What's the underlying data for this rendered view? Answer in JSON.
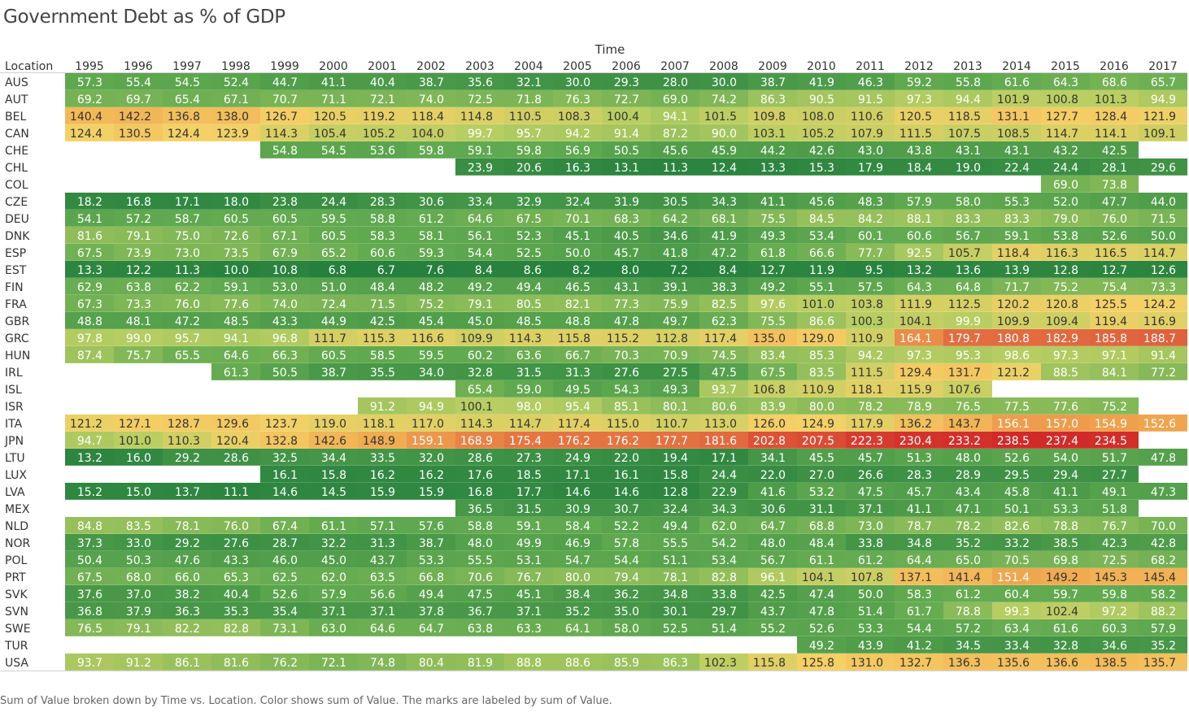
{
  "chart_data": {
    "type": "heatmap",
    "title": "Government Debt as % of GDP",
    "x_header": "Time",
    "y_header": "Location",
    "x": [
      "1995",
      "1996",
      "1997",
      "1998",
      "1999",
      "2000",
      "2001",
      "2002",
      "2003",
      "2004",
      "2005",
      "2006",
      "2007",
      "2008",
      "2009",
      "2010",
      "2011",
      "2012",
      "2013",
      "2014",
      "2015",
      "2016",
      "2017"
    ],
    "rows": [
      {
        "label": "AUS",
        "values": [
          57.3,
          55.4,
          54.5,
          52.4,
          44.7,
          41.1,
          40.4,
          38.7,
          35.6,
          32.1,
          30.0,
          29.3,
          28.0,
          30.0,
          38.7,
          41.9,
          46.3,
          59.2,
          55.8,
          61.6,
          64.3,
          68.6,
          65.7
        ]
      },
      {
        "label": "AUT",
        "values": [
          69.2,
          69.7,
          65.4,
          67.1,
          70.7,
          71.1,
          72.1,
          74.0,
          72.5,
          71.8,
          76.3,
          72.7,
          69.0,
          74.2,
          86.3,
          90.5,
          91.5,
          97.3,
          94.4,
          101.9,
          100.8,
          101.3,
          94.9
        ]
      },
      {
        "label": "BEL",
        "values": [
          140.4,
          142.2,
          136.8,
          138.0,
          126.7,
          120.5,
          119.2,
          118.4,
          114.8,
          110.5,
          108.3,
          100.4,
          94.1,
          101.5,
          109.8,
          108.0,
          110.6,
          120.5,
          118.5,
          131.1,
          127.7,
          128.4,
          121.9
        ]
      },
      {
        "label": "CAN",
        "values": [
          124.4,
          130.5,
          124.4,
          123.9,
          114.3,
          105.4,
          105.2,
          104.0,
          99.7,
          95.7,
          94.2,
          91.4,
          87.2,
          90.0,
          103.1,
          105.2,
          107.9,
          111.5,
          107.5,
          108.5,
          114.7,
          114.1,
          109.1
        ]
      },
      {
        "label": "CHE",
        "values": [
          null,
          null,
          null,
          null,
          54.8,
          54.5,
          53.6,
          59.8,
          59.1,
          59.8,
          56.9,
          50.5,
          45.6,
          45.9,
          44.2,
          42.6,
          43.0,
          43.8,
          43.1,
          43.1,
          43.2,
          42.5,
          null
        ]
      },
      {
        "label": "CHL",
        "values": [
          null,
          null,
          null,
          null,
          null,
          null,
          null,
          null,
          23.9,
          20.6,
          16.3,
          13.1,
          11.3,
          12.4,
          13.3,
          15.3,
          17.9,
          18.4,
          19.0,
          22.4,
          24.4,
          28.1,
          29.6
        ]
      },
      {
        "label": "COL",
        "values": [
          null,
          null,
          null,
          null,
          null,
          null,
          null,
          null,
          null,
          null,
          null,
          null,
          null,
          null,
          null,
          null,
          null,
          null,
          null,
          null,
          69.0,
          73.8,
          null
        ]
      },
      {
        "label": "CZE",
        "values": [
          18.2,
          16.8,
          17.1,
          18.0,
          23.8,
          24.4,
          28.3,
          30.6,
          33.4,
          32.9,
          32.4,
          31.9,
          30.5,
          34.3,
          41.1,
          45.6,
          48.3,
          57.9,
          58.0,
          55.3,
          52.0,
          47.7,
          44.0
        ]
      },
      {
        "label": "DEU",
        "values": [
          54.1,
          57.2,
          58.7,
          60.5,
          60.5,
          59.5,
          58.8,
          61.2,
          64.6,
          67.5,
          70.1,
          68.3,
          64.2,
          68.1,
          75.5,
          84.5,
          84.2,
          88.1,
          83.3,
          83.3,
          79.0,
          76.0,
          71.5
        ]
      },
      {
        "label": "DNK",
        "values": [
          81.6,
          79.1,
          75.0,
          72.6,
          67.1,
          60.5,
          58.3,
          58.1,
          56.1,
          52.3,
          45.1,
          40.5,
          34.6,
          41.9,
          49.3,
          53.4,
          60.1,
          60.6,
          56.7,
          59.1,
          53.8,
          52.6,
          50.0
        ]
      },
      {
        "label": "ESP",
        "values": [
          67.5,
          73.9,
          73.0,
          73.5,
          67.9,
          65.2,
          60.6,
          59.3,
          54.4,
          52.5,
          50.0,
          45.7,
          41.8,
          47.2,
          61.8,
          66.6,
          77.7,
          92.5,
          105.7,
          118.4,
          116.3,
          116.5,
          114.7
        ]
      },
      {
        "label": "EST",
        "values": [
          13.3,
          12.2,
          11.3,
          10.0,
          10.8,
          6.8,
          6.7,
          7.6,
          8.4,
          8.6,
          8.2,
          8.0,
          7.2,
          8.4,
          12.7,
          11.9,
          9.5,
          13.2,
          13.6,
          13.9,
          12.8,
          12.7,
          12.6
        ]
      },
      {
        "label": "FIN",
        "values": [
          62.9,
          63.8,
          62.2,
          59.1,
          53.0,
          51.0,
          48.4,
          48.2,
          49.2,
          49.4,
          46.5,
          43.1,
          39.1,
          38.3,
          49.2,
          55.1,
          57.5,
          64.3,
          64.8,
          71.7,
          75.2,
          75.4,
          73.3
        ]
      },
      {
        "label": "FRA",
        "values": [
          67.3,
          73.3,
          76.0,
          77.6,
          74.0,
          72.4,
          71.5,
          75.2,
          79.1,
          80.5,
          82.1,
          77.3,
          75.9,
          82.5,
          97.6,
          101.0,
          103.8,
          111.9,
          112.5,
          120.2,
          120.8,
          125.5,
          124.2
        ]
      },
      {
        "label": "GBR",
        "values": [
          48.8,
          48.1,
          47.2,
          48.5,
          43.3,
          44.9,
          42.5,
          45.4,
          45.0,
          48.5,
          48.8,
          47.8,
          49.7,
          62.3,
          75.5,
          86.6,
          100.3,
          104.1,
          99.9,
          109.9,
          109.4,
          119.4,
          116.9
        ]
      },
      {
        "label": "GRC",
        "values": [
          97.8,
          99.0,
          95.7,
          94.1,
          96.8,
          111.7,
          115.3,
          116.6,
          109.9,
          114.3,
          115.8,
          115.2,
          112.8,
          117.4,
          135.0,
          129.0,
          110.9,
          164.1,
          179.7,
          180.8,
          182.9,
          185.8,
          188.7
        ]
      },
      {
        "label": "HUN",
        "values": [
          87.4,
          75.7,
          65.5,
          64.6,
          66.3,
          60.5,
          58.5,
          59.5,
          60.2,
          63.6,
          66.7,
          70.3,
          70.9,
          74.5,
          83.4,
          85.3,
          94.2,
          97.3,
          95.3,
          98.6,
          97.3,
          97.1,
          91.4
        ]
      },
      {
        "label": "IRL",
        "values": [
          null,
          null,
          null,
          61.3,
          50.5,
          38.7,
          35.5,
          34.0,
          32.8,
          31.5,
          31.3,
          27.6,
          27.5,
          47.5,
          67.5,
          83.5,
          111.5,
          129.4,
          131.7,
          121.2,
          88.5,
          84.1,
          77.2
        ]
      },
      {
        "label": "ISL",
        "values": [
          null,
          null,
          null,
          null,
          null,
          null,
          null,
          null,
          65.4,
          59.0,
          49.5,
          54.3,
          49.3,
          93.7,
          106.8,
          110.9,
          118.1,
          115.9,
          107.6,
          null,
          null,
          null,
          null
        ]
      },
      {
        "label": "ISR",
        "values": [
          null,
          null,
          null,
          null,
          null,
          null,
          91.2,
          94.9,
          100.1,
          98.0,
          95.4,
          85.1,
          80.1,
          80.6,
          83.9,
          80.0,
          78.2,
          78.9,
          76.5,
          77.5,
          77.6,
          75.2,
          null
        ]
      },
      {
        "label": "ITA",
        "values": [
          121.2,
          127.1,
          128.7,
          129.6,
          123.7,
          119.0,
          118.1,
          117.0,
          114.3,
          114.7,
          117.4,
          115.0,
          110.7,
          113.0,
          126.0,
          124.9,
          117.9,
          136.2,
          143.7,
          156.1,
          157.0,
          154.9,
          152.6
        ]
      },
      {
        "label": "JPN",
        "values": [
          94.7,
          101.0,
          110.3,
          120.4,
          132.8,
          142.6,
          148.9,
          159.1,
          168.9,
          175.4,
          176.2,
          176.2,
          177.7,
          181.6,
          202.8,
          207.5,
          222.3,
          230.4,
          233.2,
          238.5,
          237.4,
          234.5,
          null
        ]
      },
      {
        "label": "LTU",
        "values": [
          13.2,
          16.0,
          29.2,
          28.6,
          32.5,
          34.4,
          33.5,
          32.0,
          28.6,
          27.3,
          24.9,
          22.0,
          19.4,
          17.1,
          34.1,
          45.5,
          45.7,
          51.3,
          48.0,
          52.6,
          54.0,
          51.7,
          47.8
        ]
      },
      {
        "label": "LUX",
        "values": [
          null,
          null,
          null,
          null,
          16.1,
          15.8,
          16.2,
          16.2,
          17.6,
          18.5,
          17.1,
          16.1,
          15.8,
          24.4,
          22.0,
          27.0,
          26.6,
          28.3,
          28.9,
          29.5,
          29.4,
          27.7,
          null
        ]
      },
      {
        "label": "LVA",
        "values": [
          15.2,
          15.0,
          13.7,
          11.1,
          14.6,
          14.5,
          15.9,
          15.9,
          16.8,
          17.7,
          14.6,
          14.6,
          12.8,
          22.9,
          41.6,
          53.2,
          47.5,
          45.7,
          43.4,
          45.8,
          41.1,
          49.1,
          47.3
        ]
      },
      {
        "label": "MEX",
        "values": [
          null,
          null,
          null,
          null,
          null,
          null,
          null,
          null,
          36.5,
          31.5,
          30.9,
          30.7,
          32.4,
          34.3,
          30.6,
          31.1,
          37.1,
          41.1,
          47.1,
          50.1,
          53.3,
          51.8,
          null
        ]
      },
      {
        "label": "NLD",
        "values": [
          84.8,
          83.5,
          78.1,
          76.0,
          67.4,
          61.1,
          57.1,
          57.6,
          58.8,
          59.1,
          58.4,
          52.2,
          49.4,
          62.0,
          64.7,
          68.8,
          73.0,
          78.7,
          78.2,
          82.6,
          78.8,
          76.7,
          70.0
        ]
      },
      {
        "label": "NOR",
        "values": [
          37.3,
          33.0,
          29.2,
          27.6,
          28.7,
          32.2,
          31.3,
          38.7,
          48.0,
          49.9,
          46.9,
          57.8,
          55.5,
          54.2,
          48.0,
          48.4,
          33.8,
          34.8,
          35.2,
          33.2,
          38.5,
          42.3,
          42.8
        ]
      },
      {
        "label": "POL",
        "values": [
          50.4,
          50.3,
          47.6,
          43.3,
          46.0,
          45.0,
          43.7,
          53.3,
          55.5,
          53.1,
          54.7,
          54.4,
          51.1,
          53.4,
          56.7,
          61.1,
          61.2,
          64.4,
          65.0,
          70.5,
          69.8,
          72.5,
          68.2
        ]
      },
      {
        "label": "PRT",
        "values": [
          67.5,
          68.0,
          66.0,
          65.3,
          62.5,
          62.0,
          63.5,
          66.8,
          70.6,
          76.7,
          80.0,
          79.4,
          78.1,
          82.8,
          96.1,
          104.1,
          107.8,
          137.1,
          141.4,
          151.4,
          149.2,
          145.3,
          145.4
        ]
      },
      {
        "label": "SVK",
        "values": [
          37.6,
          37.0,
          38.2,
          40.4,
          52.6,
          57.9,
          56.6,
          49.4,
          47.5,
          45.1,
          38.4,
          36.2,
          34.8,
          33.8,
          42.5,
          47.4,
          50.0,
          58.3,
          61.2,
          60.4,
          59.7,
          59.8,
          58.2
        ]
      },
      {
        "label": "SVN",
        "values": [
          36.8,
          37.9,
          36.3,
          35.3,
          35.4,
          37.1,
          37.1,
          37.8,
          36.7,
          37.1,
          35.2,
          35.0,
          30.1,
          29.7,
          43.7,
          47.8,
          51.4,
          61.7,
          78.8,
          99.3,
          102.4,
          97.2,
          88.2
        ]
      },
      {
        "label": "SWE",
        "values": [
          76.5,
          79.1,
          82.2,
          82.8,
          73.1,
          63.0,
          64.6,
          64.7,
          63.8,
          63.3,
          64.1,
          58.0,
          52.5,
          51.4,
          55.2,
          52.6,
          53.3,
          54.4,
          57.2,
          63.4,
          61.6,
          60.3,
          57.9
        ]
      },
      {
        "label": "TUR",
        "values": [
          null,
          null,
          null,
          null,
          null,
          null,
          null,
          null,
          null,
          null,
          null,
          null,
          null,
          null,
          null,
          49.2,
          43.9,
          41.2,
          34.5,
          33.4,
          32.8,
          34.6,
          35.2
        ]
      },
      {
        "label": "USA",
        "values": [
          93.7,
          91.2,
          86.1,
          81.6,
          76.2,
          72.1,
          74.8,
          80.4,
          81.9,
          88.8,
          88.6,
          85.9,
          86.3,
          102.3,
          115.8,
          125.8,
          131.0,
          132.7,
          136.3,
          135.6,
          136.6,
          138.5,
          135.7
        ]
      }
    ],
    "color_scale": {
      "low": "#1e7b3b",
      "mid": "#f4d166",
      "high": "#d9322b"
    },
    "caption": "Sum of Value broken down by Time vs. Location.  Color shows sum of Value.  The marks are labeled by sum of Value."
  }
}
